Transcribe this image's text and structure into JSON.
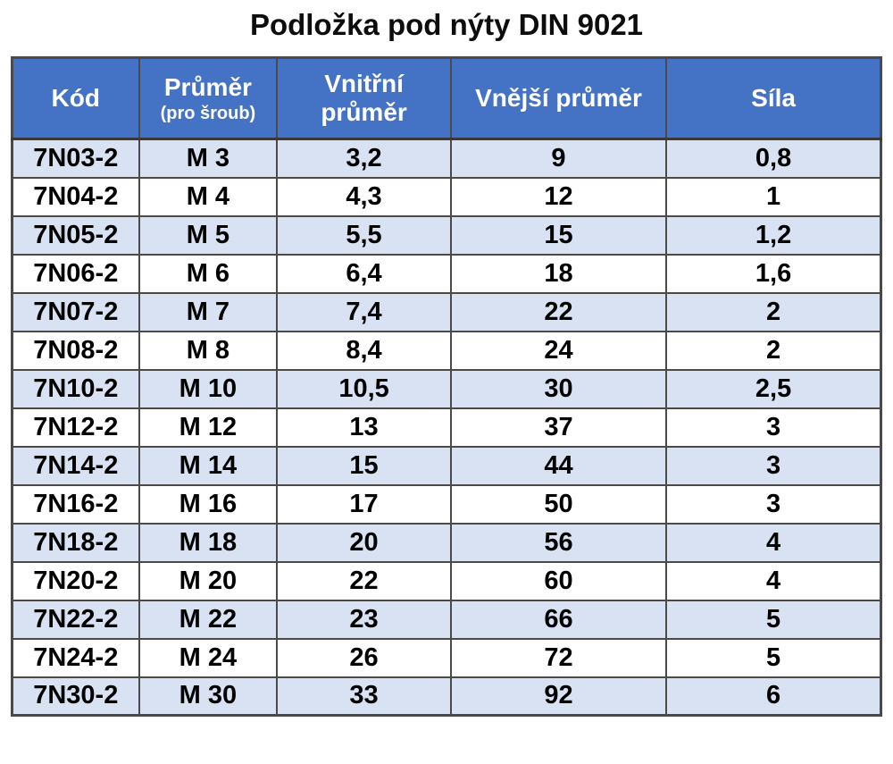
{
  "title": "Podložka pod nýty DIN 9021",
  "chart_data": {
    "type": "table",
    "title": "Podložka pod nýty DIN 9021",
    "columns": [
      "Kód",
      "Průměr (pro šroub)",
      "Vnitřní průměr",
      "Vnější průměr",
      "Síla"
    ],
    "header_labels": [
      {
        "main": "Kód",
        "sub": ""
      },
      {
        "main": "Průměr",
        "sub": "(pro šroub)"
      },
      {
        "main": "Vnitřní průměr",
        "sub": ""
      },
      {
        "main": "Vnější průměr",
        "sub": ""
      },
      {
        "main": "Síla",
        "sub": ""
      }
    ],
    "rows": [
      [
        "7N03-2",
        "M 3",
        "3,2",
        "9",
        "0,8"
      ],
      [
        "7N04-2",
        "M 4",
        "4,3",
        "12",
        "1"
      ],
      [
        "7N05-2",
        "M 5",
        "5,5",
        "15",
        "1,2"
      ],
      [
        "7N06-2",
        "M 6",
        "6,4",
        "18",
        "1,6"
      ],
      [
        "7N07-2",
        "M 7",
        "7,4",
        "22",
        "2"
      ],
      [
        "7N08-2",
        "M 8",
        "8,4",
        "24",
        "2"
      ],
      [
        "7N10-2",
        "M 10",
        "10,5",
        "30",
        "2,5"
      ],
      [
        "7N12-2",
        "M 12",
        "13",
        "37",
        "3"
      ],
      [
        "7N14-2",
        "M 14",
        "15",
        "44",
        "3"
      ],
      [
        "7N16-2",
        "M 16",
        "17",
        "50",
        "3"
      ],
      [
        "7N18-2",
        "M 18",
        "20",
        "56",
        "4"
      ],
      [
        "7N20-2",
        "M 20",
        "22",
        "60",
        "4"
      ],
      [
        "7N22-2",
        "M 22",
        "23",
        "66",
        "5"
      ],
      [
        "7N24-2",
        "M 24",
        "26",
        "72",
        "5"
      ],
      [
        "7N30-2",
        "M 30",
        "33",
        "92",
        "6"
      ]
    ],
    "layout_hints": {
      "striped_rows": "odd rows light blue, even rows white",
      "header_style": "blue background, white bold text",
      "grid": "dark gray borders on all cells"
    }
  },
  "colors": {
    "header_bg": "#4472C4",
    "header_text": "#FFFFFF",
    "row_stripe_bg": "#D9E2F3",
    "row_white_bg": "#FFFFFF",
    "border": "#4A4A4A",
    "body_text": "#000000",
    "title_text": "#0D0D0D"
  }
}
